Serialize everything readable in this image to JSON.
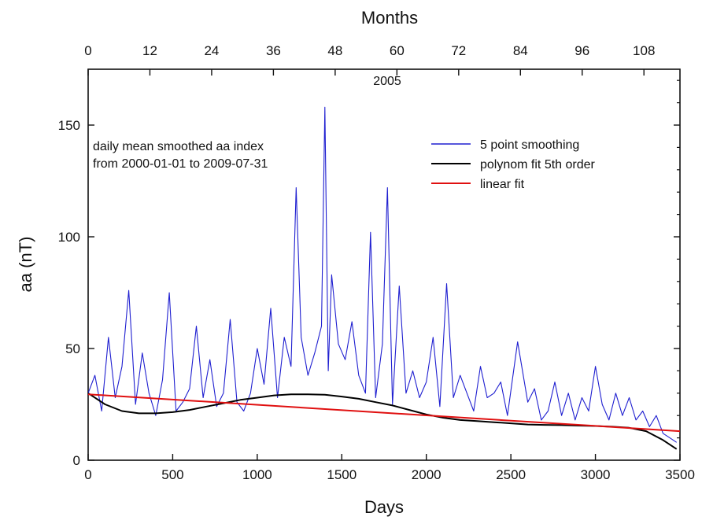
{
  "chart_data": {
    "type": "line",
    "xlabel": "Days",
    "ylabel": "aa (nT)",
    "top_xlabel": "Months",
    "xlim": [
      0,
      3500
    ],
    "ylim": [
      0,
      175
    ],
    "top_xlim": [
      0,
      115
    ],
    "x_ticks": [
      0,
      500,
      1000,
      1500,
      2000,
      2500,
      3000,
      3500
    ],
    "y_ticks": [
      0,
      50,
      100,
      150
    ],
    "top_ticks": [
      0,
      12,
      24,
      36,
      48,
      60,
      72,
      84,
      96,
      108
    ],
    "grid": false,
    "legend_position": "top-right",
    "annotations": {
      "year_marker": "2005",
      "description_line1": "daily mean smoothed aa index",
      "description_line2": "from 2000-01-01 to 2009-07-31"
    },
    "series": [
      {
        "name": "5 point smoothing",
        "color": "#1f1fd0",
        "x": [
          0,
          40,
          80,
          120,
          160,
          200,
          240,
          280,
          320,
          360,
          400,
          440,
          480,
          520,
          560,
          600,
          640,
          680,
          720,
          760,
          800,
          840,
          880,
          920,
          960,
          1000,
          1040,
          1080,
          1120,
          1160,
          1200,
          1230,
          1260,
          1300,
          1340,
          1380,
          1400,
          1420,
          1440,
          1480,
          1520,
          1560,
          1600,
          1640,
          1670,
          1700,
          1740,
          1770,
          1800,
          1840,
          1880,
          1920,
          1960,
          2000,
          2040,
          2080,
          2120,
          2160,
          2200,
          2240,
          2280,
          2320,
          2360,
          2400,
          2440,
          2480,
          2540,
          2600,
          2640,
          2680,
          2720,
          2760,
          2800,
          2840,
          2880,
          2920,
          2960,
          3000,
          3040,
          3080,
          3120,
          3160,
          3200,
          3240,
          3280,
          3320,
          3360,
          3400,
          3440,
          3480
        ],
        "values": [
          30,
          38,
          22,
          55,
          28,
          42,
          76,
          25,
          48,
          30,
          20,
          36,
          75,
          22,
          26,
          32,
          60,
          28,
          45,
          24,
          30,
          63,
          26,
          22,
          30,
          50,
          34,
          68,
          28,
          55,
          42,
          122,
          55,
          38,
          48,
          60,
          158,
          40,
          83,
          52,
          45,
          62,
          38,
          30,
          102,
          28,
          52,
          122,
          25,
          78,
          30,
          40,
          28,
          35,
          55,
          24,
          79,
          28,
          38,
          30,
          22,
          42,
          28,
          30,
          35,
          20,
          53,
          26,
          32,
          18,
          22,
          35,
          20,
          30,
          18,
          28,
          22,
          42,
          25,
          18,
          30,
          20,
          28,
          18,
          22,
          15,
          20,
          12,
          10,
          8
        ]
      },
      {
        "name": "polynom fit 5th order",
        "color": "#000000",
        "x": [
          0,
          100,
          200,
          300,
          400,
          500,
          600,
          700,
          800,
          900,
          1000,
          1100,
          1200,
          1300,
          1400,
          1500,
          1600,
          1700,
          1800,
          1900,
          2000,
          2100,
          2200,
          2300,
          2400,
          2500,
          2600,
          2700,
          2800,
          2900,
          3000,
          3100,
          3200,
          3300,
          3400,
          3480
        ],
        "values": [
          30,
          25,
          22,
          21,
          21,
          21.5,
          22.5,
          24,
          25.5,
          27,
          28,
          29,
          29.5,
          29.5,
          29.3,
          28.5,
          27.5,
          26,
          24.5,
          22.5,
          20.5,
          19,
          18,
          17.5,
          17,
          16.5,
          16,
          15.8,
          15.7,
          15.5,
          15.3,
          15,
          14.5,
          13,
          9,
          5
        ]
      },
      {
        "name": "linear fit",
        "color": "#e01010",
        "x": [
          0,
          3500
        ],
        "values": [
          29.5,
          13
        ]
      }
    ]
  }
}
